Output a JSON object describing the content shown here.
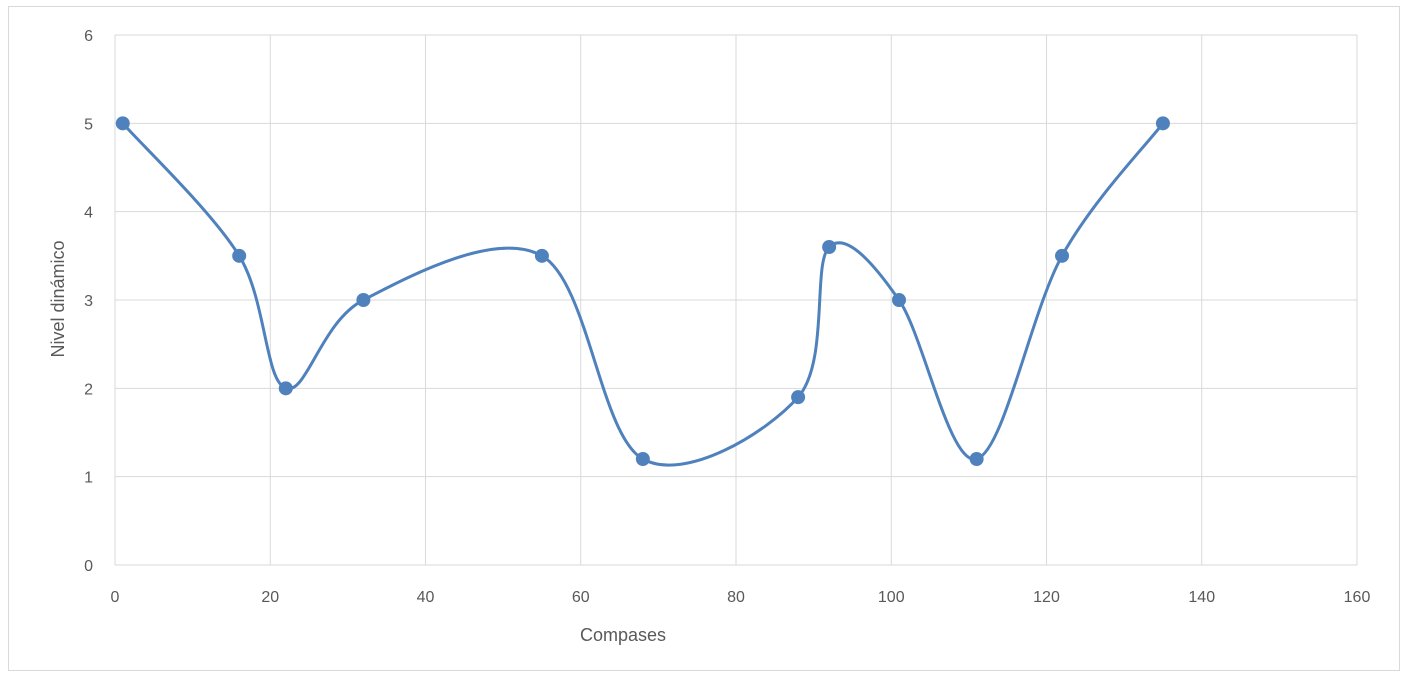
{
  "chart_data": {
    "type": "scatter",
    "title": "",
    "xlabel": "Compases",
    "ylabel": "Nivel  dinámico",
    "xlim": [
      0,
      160
    ],
    "ylim": [
      0,
      6
    ],
    "xticks": [
      0,
      20,
      40,
      60,
      80,
      100,
      120,
      140,
      160
    ],
    "yticks": [
      0,
      1,
      2,
      3,
      4,
      5,
      6
    ],
    "grid": true,
    "smooth": true,
    "legend": "none",
    "series": [
      {
        "color": "#4f81bd",
        "x": [
          1,
          16,
          22,
          32,
          55,
          68,
          88,
          92,
          101,
          111,
          122,
          135
        ],
        "y": [
          5,
          3.5,
          2,
          3,
          3.5,
          1.2,
          1.9,
          3.6,
          3,
          1.2,
          3.5,
          5
        ]
      }
    ]
  }
}
